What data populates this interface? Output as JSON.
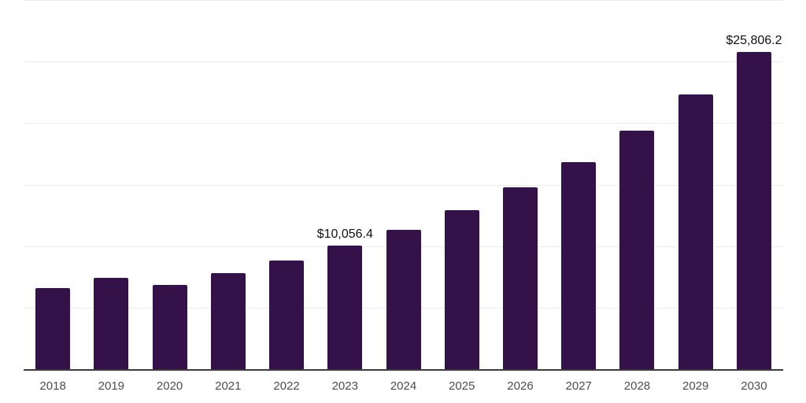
{
  "chart_data": {
    "type": "bar",
    "title": "",
    "xlabel": "",
    "ylabel": "",
    "categories": [
      "2018",
      "2019",
      "2020",
      "2021",
      "2022",
      "2023",
      "2024",
      "2025",
      "2026",
      "2027",
      "2028",
      "2029",
      "2030"
    ],
    "values": [
      6650,
      7450,
      6910,
      7830,
      8870,
      10056.4,
      11380,
      12940,
      14790,
      16870,
      19400,
      22340,
      25806.2
    ],
    "value_labels": [
      "",
      "",
      "",
      "",
      "",
      "$10,056.4",
      "",
      "",
      "",
      "",
      "",
      "",
      "$25,806.2"
    ],
    "ylim": [
      0,
      30000
    ],
    "y_gridlines": [
      5000,
      10000,
      15000,
      20000,
      25000,
      30000
    ],
    "grid": true,
    "legend": false,
    "colors": {
      "bar": "#341149",
      "gridline": "#ececec",
      "axis_line": "#3c3c3c",
      "tick_label": "#4d4d4d",
      "data_label": "#111111",
      "background": "#ffffff"
    }
  }
}
